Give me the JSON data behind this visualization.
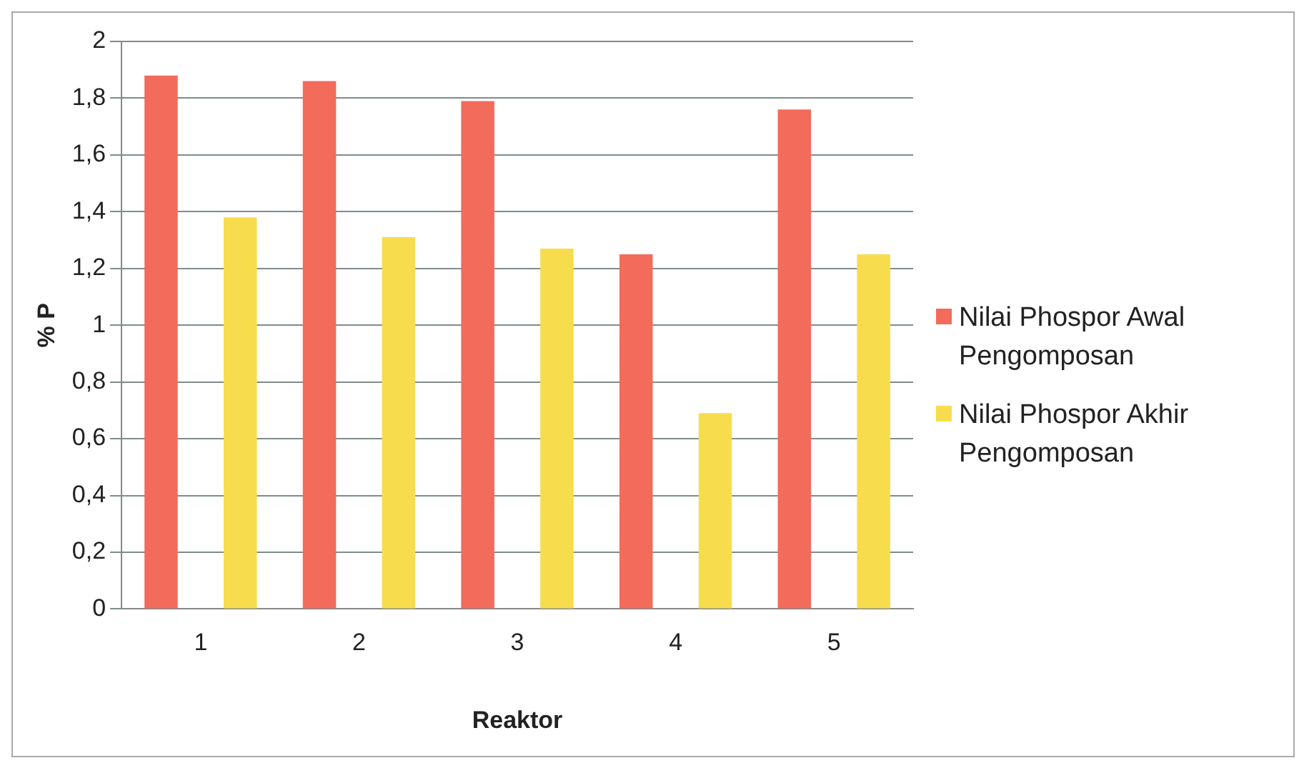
{
  "chart_data": {
    "type": "bar",
    "xlabel": "Reaktor",
    "ylabel": "% P",
    "categories": [
      "1",
      "2",
      "3",
      "4",
      "5"
    ],
    "series": [
      {
        "name": "Nilai Phospor Awal Pengomposan",
        "color": "#f26b5b",
        "values": [
          1.88,
          1.86,
          1.79,
          1.25,
          1.76
        ]
      },
      {
        "name": "Nilai Phospor Akhir Pengomposan",
        "color": "#f7dc4e",
        "values": [
          1.38,
          1.31,
          1.27,
          0.69,
          1.25
        ]
      }
    ],
    "ylim": [
      0,
      2
    ],
    "yticks": [
      0,
      {
        "value": 0.2,
        "label": "0,2"
      },
      {
        "value": 0.4,
        "label": "0,4"
      },
      {
        "value": 0.6,
        "label": "0,6"
      },
      {
        "value": 0.8,
        "label": "0,8"
      },
      1,
      {
        "value": 1.2,
        "label": "1,2"
      },
      {
        "value": 1.4,
        "label": "1,4"
      },
      {
        "value": 1.6,
        "label": "1,6"
      },
      {
        "value": 1.8,
        "label": "1,8"
      },
      2
    ],
    "grid": "y",
    "legend": "right"
  }
}
